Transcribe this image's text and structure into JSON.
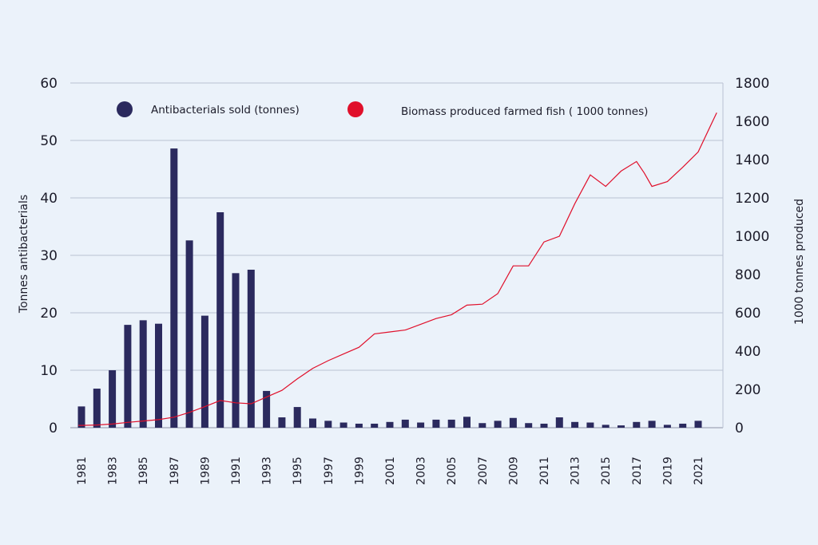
{
  "chart_data": {
    "type": "bar",
    "title": "",
    "ylabel": "Tonnes antibacterials",
    "y2label": "1000 tonnes produced",
    "ylim": [
      0,
      60
    ],
    "y2lim": [
      0,
      1800
    ],
    "yticks": [
      "0",
      "10",
      "20",
      "30",
      "40",
      "50",
      "60"
    ],
    "y2ticks": [
      "0",
      "200",
      "400",
      "600",
      "800",
      "1000",
      "1200",
      "1400",
      "1600",
      "1800"
    ],
    "xtick_labels": [
      "1981",
      "1983",
      "1985",
      "1987",
      "1989",
      "1991",
      "1993",
      "1995",
      "1997",
      "1999",
      "2001",
      "2003",
      "2005",
      "2007",
      "2009",
      "2011",
      "2013",
      "2015",
      "2017",
      "2019",
      "2021"
    ],
    "categories": [
      "1981",
      "1982",
      "1983",
      "1984",
      "1985",
      "1986",
      "1987",
      "1988",
      "1989",
      "1990",
      "1991",
      "1992",
      "1993",
      "1994",
      "1995",
      "1996",
      "1997",
      "1998",
      "1999",
      "2000",
      "2001",
      "2002",
      "2003",
      "2004",
      "2005",
      "2006",
      "2007",
      "2008",
      "2009",
      "2010",
      "2011",
      "2012",
      "2013",
      "2014",
      "2015",
      "2016",
      "2017",
      "2018",
      "2019",
      "2020",
      "2021"
    ],
    "legend_position": "top",
    "series": [
      {
        "name": "Antibacterials sold (tonnes)",
        "type": "bar",
        "axis": "left",
        "color": "#2b2a5e",
        "values": [
          3.7,
          6.8,
          10.0,
          17.9,
          18.7,
          18.1,
          48.6,
          32.6,
          19.5,
          37.5,
          26.9,
          27.5,
          6.4,
          1.8,
          3.6,
          1.6,
          1.2,
          0.9,
          0.7,
          0.7,
          1.0,
          1.4,
          0.9,
          1.4,
          1.4,
          1.9,
          0.8,
          1.2,
          1.7,
          0.8,
          0.7,
          1.8,
          1.0,
          0.9,
          0.5,
          0.4,
          1.0,
          1.2,
          0.5,
          0.7,
          1.2
        ]
      },
      {
        "name": "Biomass produced farmed fish ( 1000 tonnes)",
        "type": "line",
        "axis": "right",
        "color": "#e0102b",
        "x": [
          1980.8,
          1981,
          1982,
          1983,
          1984,
          1985,
          1986,
          1987,
          1988,
          1989,
          1990,
          1991,
          1992,
          1993,
          1994,
          1995,
          1996,
          1997,
          1998,
          1999,
          2000,
          2001,
          2002,
          2003,
          2004,
          2005,
          2006,
          2007,
          2008,
          2009,
          2010,
          2011,
          2012,
          2013,
          2014,
          2015,
          2016,
          2017,
          2017.5,
          2018,
          2019,
          2020,
          2021,
          2022.2
        ],
        "values": [
          12,
          12,
          14,
          19,
          28,
          35,
          42,
          55,
          80,
          110,
          142,
          130,
          125,
          160,
          195,
          255,
          310,
          350,
          385,
          420,
          490,
          500,
          510,
          540,
          570,
          590,
          640,
          645,
          700,
          845,
          845,
          970,
          1000,
          1170,
          1320,
          1260,
          1340,
          1390,
          1330,
          1260,
          1285,
          1360,
          1440,
          1645
        ]
      }
    ]
  }
}
